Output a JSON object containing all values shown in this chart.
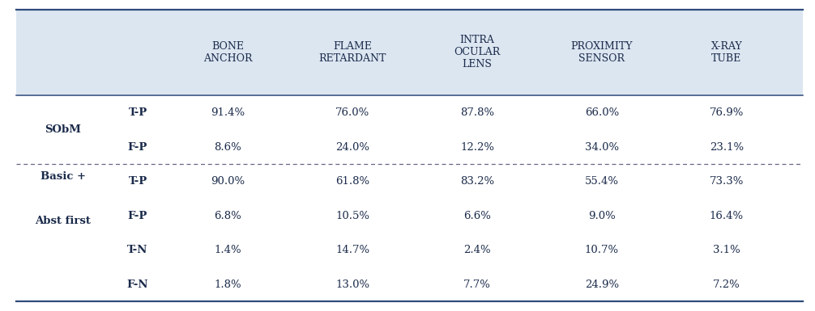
{
  "header_bg": "#dce6f1",
  "fig_bg": "#ffffff",
  "border_color": "#2e4a7a",
  "text_color": "#1a2a4a",
  "col_headers": [
    "BONE\nANCHOR",
    "FLAME\nRETARDANT",
    "INTRA\nOCULAR\nLENS",
    "PROXIMITY\nSENSOR",
    "X-RAY\nTUBE"
  ],
  "row_groups": [
    {
      "group_label": "SObM",
      "group_line1": "SObM",
      "group_line2": "",
      "rows": [
        {
          "metric": "T-P",
          "values": [
            "91.4%",
            "76.0%",
            "87.8%",
            "66.0%",
            "76.9%"
          ]
        },
        {
          "metric": "F-P",
          "values": [
            "8.6%",
            "24.0%",
            "12.2%",
            "34.0%",
            "23.1%"
          ]
        }
      ]
    },
    {
      "group_label": "Basic +\nAbst first",
      "group_line1": "Basic +",
      "group_line2": "Abst first",
      "rows": [
        {
          "metric": "T-P",
          "values": [
            "90.0%",
            "61.8%",
            "83.2%",
            "55.4%",
            "73.3%"
          ]
        },
        {
          "metric": "F-P",
          "values": [
            "6.8%",
            "10.5%",
            "6.6%",
            "9.0%",
            "16.4%"
          ]
        },
        {
          "metric": "T-N",
          "values": [
            "1.4%",
            "14.7%",
            "2.4%",
            "10.7%",
            "3.1%"
          ]
        },
        {
          "metric": "F-N",
          "values": [
            "1.8%",
            "13.0%",
            "7.7%",
            "24.9%",
            "7.2%"
          ]
        }
      ]
    }
  ],
  "header_font_size": 9.0,
  "cell_font_size": 9.5,
  "group_font_size": 9.5,
  "metric_font_size": 9.5
}
